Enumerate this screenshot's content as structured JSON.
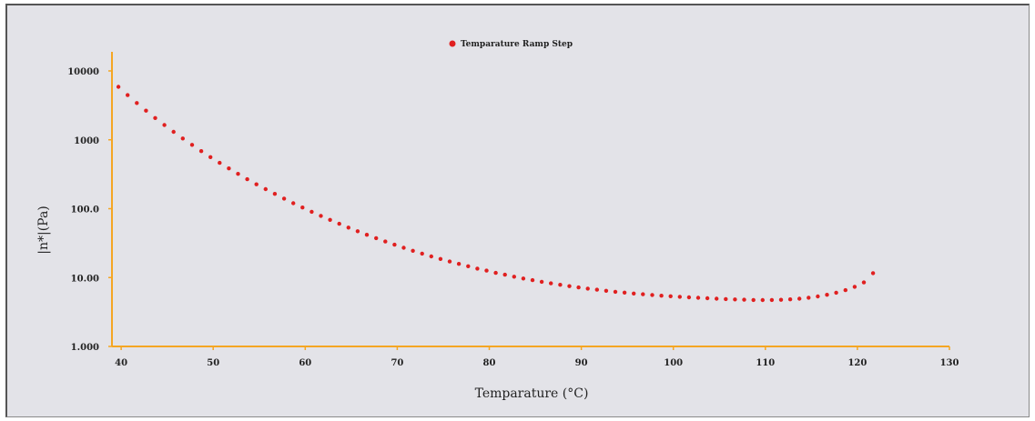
{
  "chart_data": {
    "type": "scatter",
    "xlabel": "Temparature (°C)",
    "ylabel": "|n*|(Pa)",
    "x_ticks": [
      "40",
      "50",
      "60",
      "70",
      "80",
      "90",
      "100",
      "110",
      "120",
      "130"
    ],
    "y_ticks": [
      "1.000",
      "10.00",
      "100.0",
      "1000",
      "10000"
    ],
    "x_range": [
      39,
      130
    ],
    "y_range": [
      1,
      10000
    ],
    "y_scale": "log",
    "grid": false,
    "legend_position": "top-center",
    "axis_color": "#f5a623",
    "series": [
      {
        "name": "Temparature Ramp Step",
        "color": "#e02020",
        "x": [
          39.7,
          40.7,
          41.7,
          42.7,
          43.7,
          44.7,
          45.7,
          46.7,
          47.7,
          48.7,
          49.7,
          50.7,
          51.7,
          52.7,
          53.7,
          54.7,
          55.7,
          56.7,
          57.7,
          58.7,
          59.7,
          60.7,
          61.7,
          62.7,
          63.7,
          64.7,
          65.7,
          66.7,
          67.7,
          68.7,
          69.7,
          70.7,
          71.7,
          72.7,
          73.7,
          74.7,
          75.7,
          76.7,
          77.7,
          78.7,
          79.7,
          80.7,
          81.7,
          82.7,
          83.7,
          84.7,
          85.7,
          86.7,
          87.7,
          88.7,
          89.7,
          90.7,
          91.7,
          92.7,
          93.7,
          94.7,
          95.7,
          96.7,
          97.7,
          98.7,
          99.7,
          100.7,
          101.7,
          102.7,
          103.7,
          104.7,
          105.7,
          106.7,
          107.7,
          108.7,
          109.7,
          110.7,
          111.7,
          112.7,
          113.7,
          114.7,
          115.7,
          116.7,
          117.7,
          118.7,
          119.7,
          120.7,
          121.7
        ],
        "y": [
          5870,
          4460,
          3420,
          2650,
          2070,
          1640,
          1305,
          1045,
          845,
          685,
          560,
          463,
          384,
          320,
          268,
          226,
          192,
          164,
          140,
          120,
          104,
          90.3,
          78.7,
          68.8,
          60.4,
          53.2,
          47.1,
          41.8,
          37.3,
          33.4,
          30.0,
          27.1,
          24.5,
          22.3,
          20.3,
          18.6,
          17.1,
          15.8,
          14.6,
          13.5,
          12.6,
          11.7,
          11.0,
          10.3,
          9.7,
          9.16,
          8.68,
          8.25,
          7.86,
          7.51,
          7.19,
          6.91,
          6.66,
          6.43,
          6.22,
          6.04,
          5.87,
          5.72,
          5.58,
          5.46,
          5.35,
          5.25,
          5.16,
          5.08,
          5.01,
          4.94,
          4.88,
          4.82,
          4.77,
          4.73,
          4.71,
          4.72,
          4.75,
          4.83,
          4.94,
          5.1,
          5.32,
          5.62,
          6.02,
          6.56,
          7.34,
          8.5,
          11.6
        ]
      }
    ]
  }
}
